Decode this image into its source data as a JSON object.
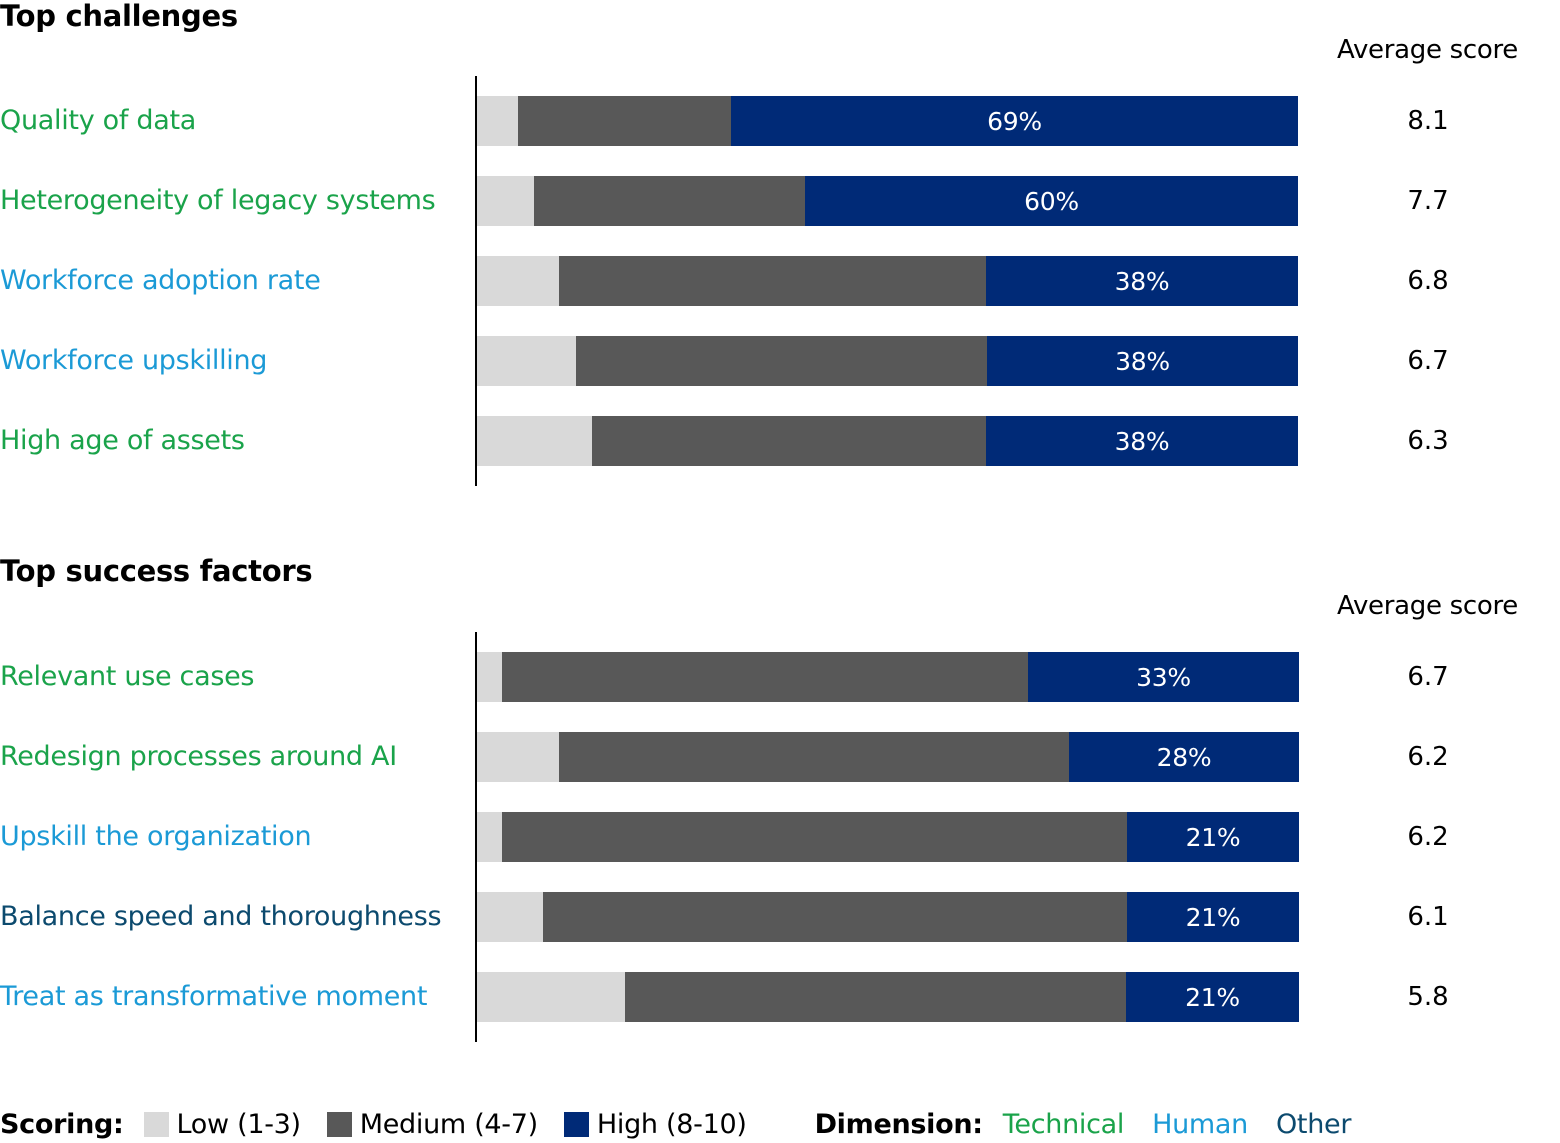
{
  "colors": {
    "low": "#d9d9d9",
    "medium": "#585858",
    "high": "#002a77",
    "technical": "#1aa34a",
    "human": "#1b9ad6",
    "other": "#0c4a6e"
  },
  "chart_data": [
    {
      "type": "bar",
      "orientation": "horizontal",
      "stacked": true,
      "title": "Top challenges",
      "avg_header": "Average score",
      "categories": [
        "Quality of data",
        "Heterogeneity of legacy systems",
        "Workforce adoption rate",
        "Workforce upskilling",
        "High age of assets"
      ],
      "dimensions": [
        "Technical",
        "Technical",
        "Human",
        "Human",
        "Technical"
      ],
      "series": [
        {
          "name": "Low (1-3)",
          "values": [
            5,
            7,
            10,
            12,
            14
          ]
        },
        {
          "name": "Medium (4-7)",
          "values": [
            26,
            33,
            52,
            50,
            48
          ]
        },
        {
          "name": "High (8-10)",
          "values": [
            69,
            60,
            38,
            38,
            38
          ]
        }
      ],
      "high_labels": [
        "69%",
        "60%",
        "38%",
        "38%",
        "38%"
      ],
      "average_scores": [
        "8.1",
        "7.7",
        "6.8",
        "6.7",
        "6.3"
      ]
    },
    {
      "type": "bar",
      "orientation": "horizontal",
      "stacked": true,
      "title": "Top success factors",
      "avg_header": "Average score",
      "categories": [
        "Relevant use cases",
        "Redesign processes around AI",
        "Upskill the organization",
        "Balance speed and thoroughness",
        "Treat as transformative moment"
      ],
      "dimensions": [
        "Technical",
        "Technical",
        "Human",
        "Other",
        "Human"
      ],
      "series": [
        {
          "name": "Low (1-3)",
          "values": [
            3,
            10,
            3,
            8,
            18
          ]
        },
        {
          "name": "Medium (4-7)",
          "values": [
            64,
            62,
            76,
            71,
            61
          ]
        },
        {
          "name": "High (8-10)",
          "values": [
            33,
            28,
            21,
            21,
            21
          ]
        }
      ],
      "high_labels": [
        "33%",
        "28%",
        "21%",
        "21%",
        "21%"
      ],
      "average_scores": [
        "6.7",
        "6.2",
        "6.2",
        "6.1",
        "5.8"
      ]
    }
  ],
  "legend": {
    "scoring_label": "Scoring:",
    "low": "Low (1-3)",
    "medium": "Medium (4-7)",
    "high": "High (8-10)",
    "dimension_label": "Dimension:",
    "technical": "Technical",
    "human": "Human",
    "other": "Other"
  }
}
